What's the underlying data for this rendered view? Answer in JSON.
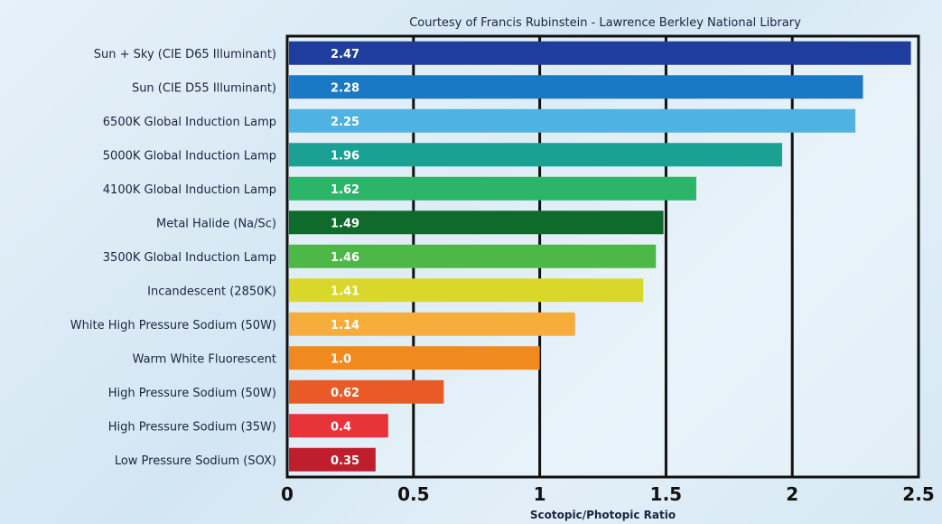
{
  "chart_data": {
    "type": "bar",
    "orientation": "horizontal",
    "credit": "Courtesy of Francis Rubinstein - Lawrence Berkley National Library",
    "xlabel": "Scotopic/Photopic Ratio",
    "xlim": [
      0,
      2.5
    ],
    "ticks": [
      "0",
      "0.5",
      "1",
      "1.5",
      "2",
      "2.5"
    ],
    "tick_values": [
      0,
      0.5,
      1,
      1.5,
      2,
      2.5
    ],
    "grid": "vertical",
    "categories": [
      "Sun + Sky (CIE D65 Illuminant)",
      "Sun (CIE D55 Illuminant)",
      "6500K Global Induction Lamp",
      "5000K Global Induction Lamp",
      "4100K Global Induction Lamp",
      "Metal Halide (Na/Sc)",
      "3500K Global Induction Lamp",
      "Incandescent (2850K)",
      "White High Pressure Sodium (50W)",
      "Warm White Fluorescent",
      "High Pressure Sodium (50W)",
      "High Pressure Sodium (35W)",
      "Low Pressure Sodium (SOX)"
    ],
    "values": [
      2.47,
      2.28,
      2.25,
      1.96,
      1.62,
      1.49,
      1.46,
      1.41,
      1.14,
      1.0,
      0.62,
      0.4,
      0.35
    ],
    "value_labels": [
      "2.47",
      "2.28",
      "2.25",
      "1.96",
      "1.62",
      "1.49",
      "1.46",
      "1.41",
      "1.14",
      "1.0",
      "0.62",
      "0.4",
      "0.35"
    ],
    "colors": [
      "#1f3d9c",
      "#1b78c4",
      "#4fb2e0",
      "#1aa193",
      "#2cb568",
      "#0f6b2c",
      "#4db847",
      "#d9d82a",
      "#f6ad3c",
      "#f08a1f",
      "#ea5a27",
      "#e8333b",
      "#bf1e2d"
    ]
  }
}
